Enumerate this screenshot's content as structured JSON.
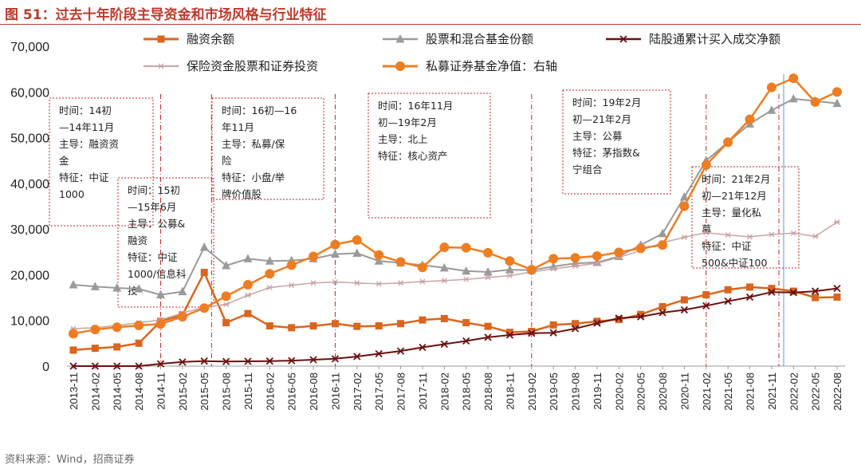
{
  "figure": {
    "title": "图 51：过去十年阶段主导资金和市场风格与行业特征",
    "source": "资料来源：Wind，招商证券"
  },
  "colors": {
    "margin": "#d9651f",
    "fund_shares": "#9a9a9a",
    "connect": "#6b1010",
    "insurance": "#c9a3a3",
    "private": "#ee7d22",
    "annotation": "#cc2222",
    "vline": "#5b9bd5"
  },
  "annotations": [
    {
      "lines": [
        "时间：14初",
        "—14年11月",
        "主导：融资资",
        "金",
        "特征：中证",
        "1000"
      ]
    },
    {
      "lines": [
        "时间：15初",
        "—15年6月",
        "主导：公募&",
        "融资",
        "特征：中证",
        "1000/信息科",
        "技"
      ]
    },
    {
      "lines": [
        "时间：16初—16",
        "年11月",
        "主导：私募/保",
        "险",
        "特征：小盘/举",
        "牌价值股"
      ]
    },
    {
      "lines": [
        "时间：16年11月",
        "初—19年2月",
        "主导：北上",
        "特征：核心资产"
      ]
    },
    {
      "lines": [
        "时间：19年2月",
        "初—21年2月",
        "主导：公募",
        "特征：茅指数&",
        "宁组合"
      ]
    },
    {
      "lines": [
        "时间：21年2月",
        "初—21年12月",
        "主导：量化私",
        "募",
        "特征：中证",
        "500&中证100"
      ]
    }
  ],
  "chart_data": {
    "type": "line",
    "x": [
      "2013-11",
      "2014-02",
      "2014-05",
      "2014-08",
      "2014-11",
      "2015-02",
      "2015-05",
      "2015-08",
      "2015-11",
      "2016-02",
      "2016-05",
      "2016-08",
      "2016-11",
      "2017-02",
      "2017-05",
      "2017-08",
      "2017-11",
      "2018-02",
      "2018-05",
      "2018-08",
      "2018-11",
      "2019-02",
      "2019-05",
      "2019-08",
      "2019-11",
      "2020-02",
      "2020-05",
      "2020-08",
      "2020-11",
      "2021-02",
      "2021-05",
      "2021-08",
      "2021-11",
      "2022-02",
      "2022-05",
      "2022-08"
    ],
    "ylim": [
      0,
      70000
    ],
    "yticks": [
      "0",
      "10,000",
      "20,000",
      "30,000",
      "40,000",
      "50,000",
      "60,000",
      "70,000"
    ],
    "legend_position": "top",
    "grid": false,
    "series": [
      {
        "name": "融资余额",
        "marker": "square",
        "values": [
          3500,
          3900,
          4200,
          5000,
          9800,
          11200,
          20500,
          9500,
          11500,
          8800,
          8400,
          8800,
          9300,
          8700,
          8800,
          9300,
          10100,
          10400,
          9500,
          8700,
          7400,
          7600,
          9000,
          9300,
          9800,
          10200,
          11300,
          13000,
          14500,
          15600,
          16700,
          17300,
          17000,
          16400,
          15000,
          15100
        ]
      },
      {
        "name": "股票和混合基金份额",
        "marker": "triangle",
        "values": [
          17800,
          17400,
          17100,
          16900,
          15600,
          16300,
          26000,
          22000,
          23500,
          23000,
          23100,
          23500,
          24500,
          24700,
          23000,
          22600,
          22100,
          21500,
          20800,
          20600,
          21100,
          21000,
          21800,
          22500,
          22700,
          24000,
          26500,
          29000,
          37000,
          45000,
          49000,
          53000,
          56000,
          58500,
          58000,
          57500
        ]
      },
      {
        "name": "陆股通累计买入成交净额",
        "marker": "x",
        "values": [
          0,
          0,
          0,
          0,
          500,
          900,
          1100,
          1000,
          1050,
          1100,
          1200,
          1400,
          1600,
          2100,
          2700,
          3300,
          4100,
          4800,
          5500,
          6300,
          6800,
          7200,
          7300,
          8200,
          9400,
          10500,
          10800,
          11700,
          12300,
          13200,
          14200,
          15100,
          16200,
          16100,
          16400,
          17000
        ]
      },
      {
        "name": "保险资金股票和证券投资",
        "marker": "star",
        "values": [
          8200,
          8400,
          8900,
          9500,
          10100,
          11600,
          12900,
          13500,
          15500,
          17200,
          17700,
          18200,
          18400,
          18200,
          18000,
          18200,
          18500,
          18700,
          19000,
          19400,
          19800,
          20600,
          21300,
          21900,
          22500,
          23800,
          25300,
          27000,
          28200,
          29200,
          28700,
          28300,
          28800,
          29100,
          28400,
          31500
        ]
      },
      {
        "name": "私募证券基金净值：右轴",
        "marker": "circle",
        "axis": "right",
        "values": [
          7100,
          8000,
          8500,
          8900,
          9200,
          10800,
          12700,
          15300,
          17800,
          20200,
          22100,
          24000,
          26600,
          27600,
          24300,
          22800,
          21600,
          26000,
          25900,
          24800,
          23000,
          21100,
          23500,
          23700,
          24100,
          24900,
          25800,
          26500,
          35000,
          44000,
          49000,
          54000,
          61000,
          63000,
          57800,
          60000
        ]
      }
    ]
  },
  "legend_labels": [
    "融资余额",
    "股票和混合基金份额",
    "陆股通累计买入成交净额",
    "保险资金股票和证券投资",
    "私募证券基金净值：右轴"
  ]
}
